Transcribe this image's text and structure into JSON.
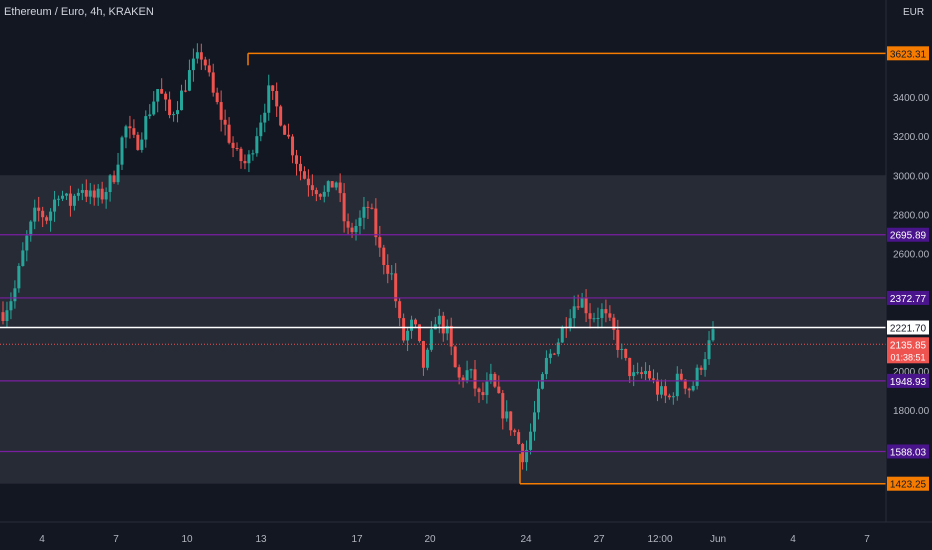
{
  "header": {
    "title": "Ethereum / Euro, 4h, KRAKEN",
    "currency": "EUR"
  },
  "colors": {
    "background": "#131722",
    "zone": "#2a2e39",
    "up": "#26a69a",
    "down": "#ef5350",
    "purple_line": "#7b1fa2",
    "orange_line": "#f57c00",
    "white_line": "#ffffff",
    "axis_text": "#b2b5be"
  },
  "chart_data": {
    "type": "candlestick",
    "title": "Ethereum / Euro, 4h, KRAKEN",
    "y_unit": "EUR",
    "ylim": [
      1400,
      3700
    ],
    "y_ticks": [
      1800,
      2000,
      2600,
      2800,
      3000,
      3200,
      3400
    ],
    "x_ticks": [
      "4",
      "7",
      "10",
      "13",
      "17",
      "20",
      "24",
      "27",
      "12:00",
      "Jun",
      "4",
      "7"
    ],
    "zone": {
      "from": 1423.25,
      "to": 3000
    },
    "levels": [
      {
        "value": 3623.31,
        "label": "3623.31",
        "kind": "orange",
        "start": "12"
      },
      {
        "value": 2695.89,
        "label": "2695.89",
        "kind": "purple"
      },
      {
        "value": 2372.77,
        "label": "2372.77",
        "kind": "purple"
      },
      {
        "value": 2221.7,
        "label": "2221.70",
        "kind": "white"
      },
      {
        "value": 1948.93,
        "label": "1948.93",
        "kind": "purple"
      },
      {
        "value": 1588.03,
        "label": "1588.03",
        "kind": "purple"
      },
      {
        "value": 1423.25,
        "label": "1423.25",
        "kind": "orange",
        "start": "23"
      }
    ],
    "last_price": {
      "value": 2135.85,
      "label": "2135.85",
      "countdown": "01:38:51"
    },
    "price_path": [
      2300,
      2400,
      2650,
      2820,
      2780,
      2920,
      2850,
      2950,
      2880,
      2900,
      3000,
      3250,
      3150,
      3300,
      3450,
      3300,
      3400,
      3550,
      3623,
      3400,
      3250,
      3100,
      3050,
      3250,
      3430,
      3300,
      3150,
      3000,
      2950,
      2900,
      2980,
      2700,
      2750,
      2850,
      2600,
      2500,
      2150,
      2250,
      2000,
      2280,
      2200,
      1950,
      2000,
      1850,
      1950,
      1800,
      1700,
      1550,
      1800,
      2050,
      2150,
      2300,
      2380,
      2280,
      2300,
      2200,
      2050,
      1950,
      2000,
      1900,
      1850,
      1980,
      1900,
      2050,
      2180
    ]
  }
}
